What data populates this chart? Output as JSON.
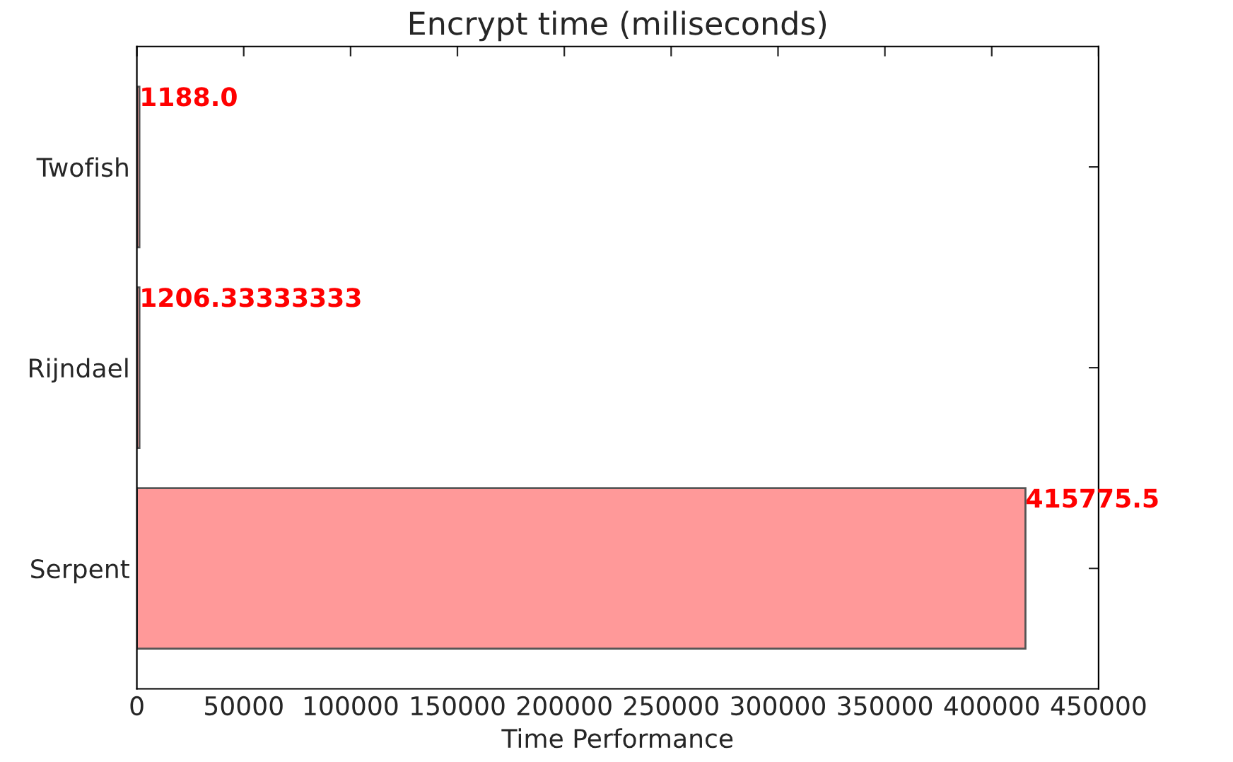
{
  "chart_data": {
    "type": "bar",
    "orientation": "horizontal",
    "title": "Encrypt time (miliseconds)",
    "xlabel": "Time Performance",
    "categories": [
      "Twofish",
      "Rijndael",
      "Serpent"
    ],
    "values": [
      1188.0,
      1206.33333333,
      415775.5
    ],
    "value_labels": [
      "1188.0",
      "1206.33333333",
      "415775.5"
    ],
    "color": "#ff9999",
    "xlim": [
      0,
      450000
    ],
    "xticks": [
      0,
      50000,
      100000,
      150000,
      200000,
      250000,
      300000,
      350000,
      400000,
      450000
    ],
    "grid": false,
    "legend": false
  }
}
